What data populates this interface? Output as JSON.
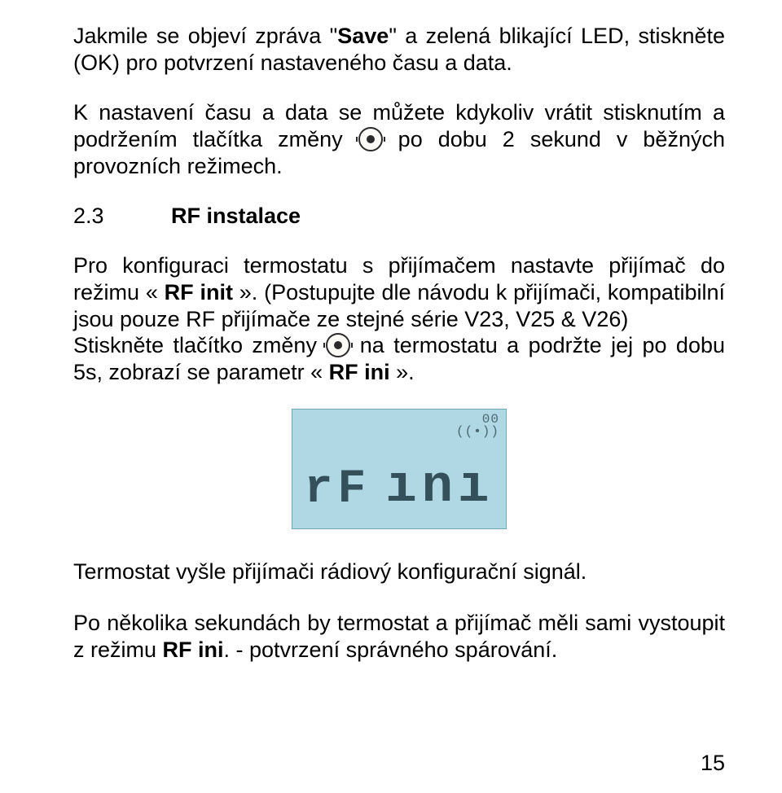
{
  "colors": {
    "text": "#000000",
    "lcd_bg": "#afd8e4",
    "lcd_border": "#6aa9bb",
    "lcd_seg": "#34505b",
    "lcd_faint": "#4c6772"
  },
  "typography": {
    "body_family": "Arial",
    "body_size_pt": 20,
    "line_height": 1.22
  },
  "p1": {
    "pre_save": "Jakmile se objeví zpráva \"",
    "save": "Save",
    "post_save": "\" a zelená blikající LED, stiskněte (OK) pro potvrzení nastaveného času a data."
  },
  "p2": {
    "part1": "K nastavení času a data se můžete kdykoliv vrátit stisknutím a podržením tlačítka změny ",
    "part2": " po dobu 2 sekund v běžných provozních režimech."
  },
  "section": {
    "number": "2.3",
    "title": "RF instalace"
  },
  "p3": {
    "lead": "Pro konfiguraci termostatu s přijímačem nastavte přijímač do režimu « ",
    "rf_init": "RF init",
    "after_init": " ». (Postupujte dle návodu k přijímači, kompatibilní jsou pouze RF přijímače ze stejné série V23, V25 & V26)"
  },
  "p4": {
    "part1": "Stiskněte tlačítko změny ",
    "part2": " na termostatu a podržte jej po dobu 5s, zobrazí se parametr « ",
    "rf_ini": "RF ini",
    "part3": " »."
  },
  "lcd": {
    "corner_line1": "00",
    "corner_line2": "((•))",
    "main_left": "rF",
    "main_right": "ını"
  },
  "p5": "Termostat vyšle přijímači rádiový konfigurační signál.",
  "p6": {
    "part1": "Po několika sekundách by termostat a přijímač měli sami vystoupit z režimu ",
    "rf_ini": "RF ini",
    "part2": ". - potvrzení správného spárování."
  },
  "page_number": "15"
}
